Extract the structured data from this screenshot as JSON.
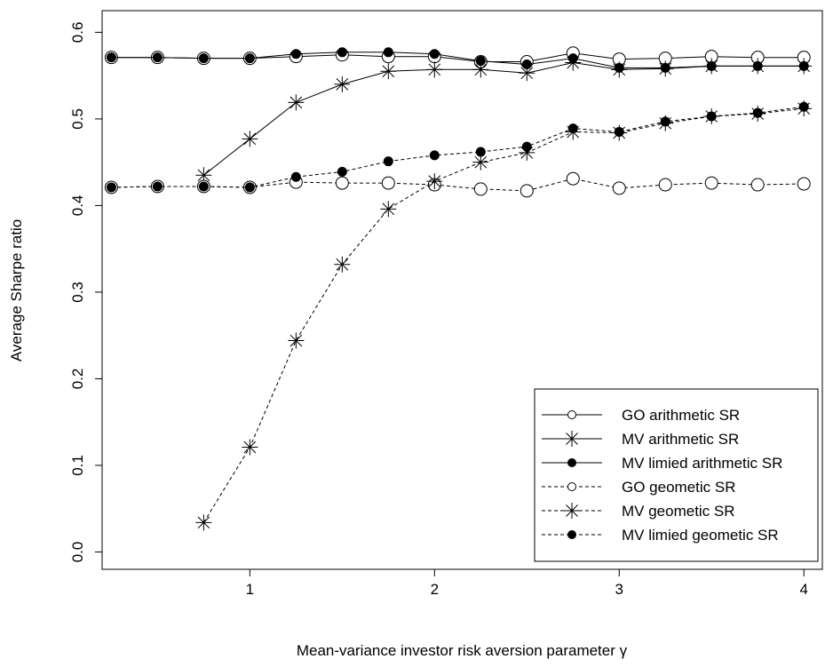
{
  "chart_data": {
    "type": "line",
    "xlabel": "Mean-variance investor risk aversion parameter γ",
    "ylabel": "Average Sharpe ratio",
    "xlim": [
      0.2,
      4.1
    ],
    "ylim": [
      -0.02,
      0.625
    ],
    "x_ticks": [
      1,
      2,
      3,
      4
    ],
    "y_ticks": [
      0.0,
      0.1,
      0.2,
      0.3,
      0.4,
      0.5,
      0.6
    ],
    "y_tick_labels": [
      "0.0",
      "0.1",
      "0.2",
      "0.3",
      "0.4",
      "0.5",
      "0.6"
    ],
    "legend_position": "bottom-right",
    "grid": false,
    "series": [
      {
        "name": "GO arithmetic SR",
        "marker": "circle-open",
        "dashed": false,
        "x": [
          0.25,
          0.5,
          0.75,
          1.0,
          1.25,
          1.5,
          1.75,
          2.0,
          2.25,
          2.5,
          2.75,
          3.0,
          3.25,
          3.5,
          3.75,
          4.0
        ],
        "values": [
          0.571,
          0.571,
          0.57,
          0.57,
          0.572,
          0.574,
          0.572,
          0.572,
          0.566,
          0.566,
          0.576,
          0.569,
          0.57,
          0.572,
          0.571,
          0.571
        ]
      },
      {
        "name": "MV arithmetic SR",
        "marker": "asterisk",
        "dashed": false,
        "x": [
          0.75,
          1.0,
          1.25,
          1.5,
          1.75,
          2.0,
          2.25,
          2.5,
          2.75,
          3.0,
          3.25,
          3.5,
          3.75,
          4.0
        ],
        "values": [
          0.435,
          0.477,
          0.519,
          0.54,
          0.555,
          0.557,
          0.557,
          0.553,
          0.565,
          0.557,
          0.558,
          0.561,
          0.561,
          0.561
        ]
      },
      {
        "name": "MV limied arithmetic SR",
        "marker": "dot",
        "dashed": false,
        "x": [
          0.25,
          0.5,
          0.75,
          1.0,
          1.25,
          1.5,
          1.75,
          2.0,
          2.25,
          2.5,
          2.75,
          3.0,
          3.25,
          3.5,
          3.75,
          4.0
        ],
        "values": [
          0.571,
          0.571,
          0.57,
          0.57,
          0.575,
          0.577,
          0.577,
          0.575,
          0.567,
          0.563,
          0.57,
          0.559,
          0.559,
          0.561,
          0.561,
          0.561
        ]
      },
      {
        "name": "GO geometic SR",
        "marker": "circle-open",
        "dashed": true,
        "x": [
          0.25,
          0.5,
          0.75,
          1.0,
          1.25,
          1.5,
          1.75,
          2.0,
          2.25,
          2.5,
          2.75,
          3.0,
          3.25,
          3.5,
          3.75,
          4.0
        ],
        "values": [
          0.421,
          0.422,
          0.422,
          0.421,
          0.427,
          0.426,
          0.426,
          0.424,
          0.419,
          0.417,
          0.431,
          0.42,
          0.424,
          0.426,
          0.424,
          0.425
        ]
      },
      {
        "name": "MV geometic SR",
        "marker": "asterisk",
        "dashed": true,
        "x": [
          0.75,
          1.0,
          1.25,
          1.5,
          1.75,
          2.0,
          2.25,
          2.5,
          2.75,
          3.0,
          3.25,
          3.5,
          3.75,
          4.0
        ],
        "values": [
          0.034,
          0.121,
          0.244,
          0.332,
          0.396,
          0.428,
          0.45,
          0.461,
          0.485,
          0.484,
          0.495,
          0.503,
          0.506,
          0.512
        ]
      },
      {
        "name": "MV limied geometic SR",
        "marker": "dot",
        "dashed": true,
        "x": [
          0.25,
          0.5,
          0.75,
          1.0,
          1.25,
          1.5,
          1.75,
          2.0,
          2.25,
          2.5,
          2.75,
          3.0,
          3.25,
          3.5,
          3.75,
          4.0
        ],
        "values": [
          0.421,
          0.422,
          0.422,
          0.421,
          0.433,
          0.439,
          0.451,
          0.458,
          0.462,
          0.468,
          0.489,
          0.485,
          0.497,
          0.503,
          0.507,
          0.514
        ]
      }
    ]
  }
}
